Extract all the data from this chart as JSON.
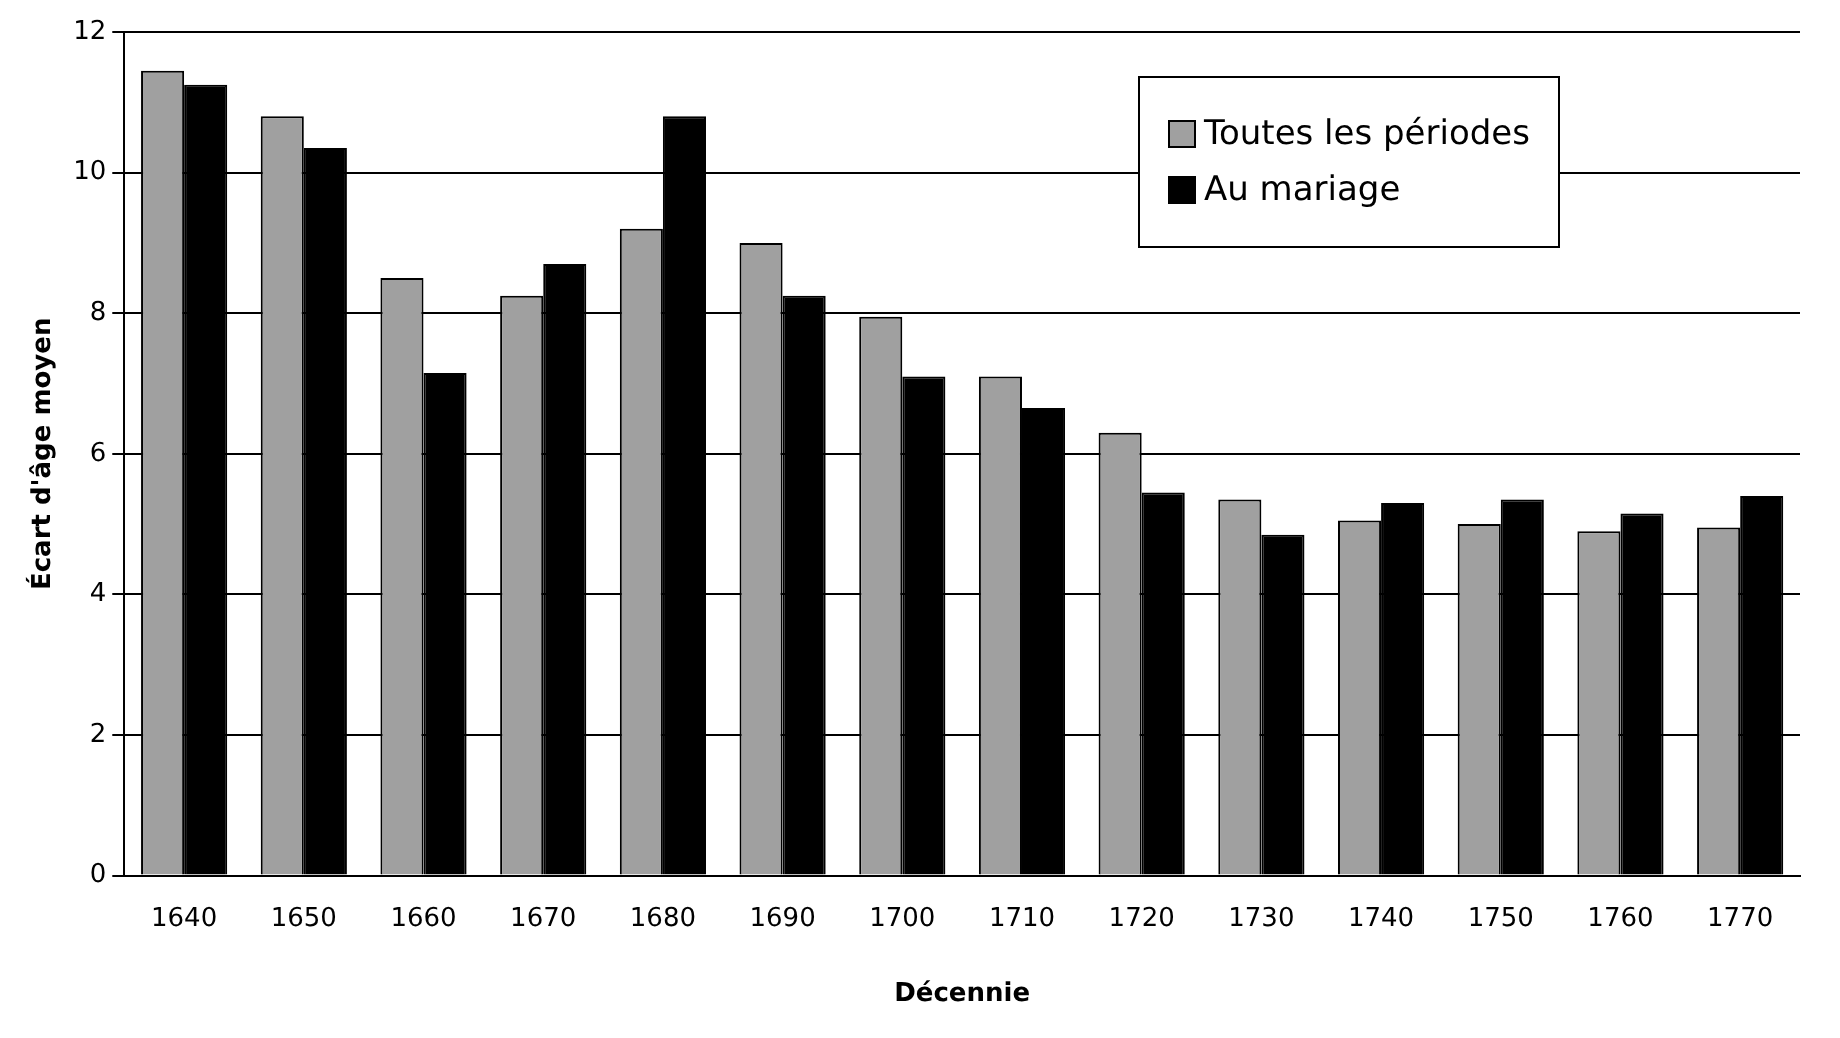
{
  "chart_data": {
    "type": "bar",
    "xlabel": "Décennie",
    "ylabel": "Écart d'âge moyen",
    "categories": [
      "1640",
      "1650",
      "1660",
      "1670",
      "1680",
      "1690",
      "1700",
      "1710",
      "1720",
      "1730",
      "1740",
      "1750",
      "1760",
      "1770"
    ],
    "series": [
      {
        "name": "Toutes les périodes",
        "color": "#a0a0a0",
        "values": [
          11.45,
          10.8,
          8.5,
          8.25,
          9.2,
          9.0,
          7.95,
          7.1,
          6.3,
          5.35,
          5.05,
          5.0,
          4.9,
          4.95
        ]
      },
      {
        "name": "Au mariage",
        "color": "#000000",
        "values": [
          11.25,
          10.35,
          7.15,
          8.7,
          10.8,
          8.25,
          7.1,
          6.65,
          5.45,
          4.85,
          5.3,
          5.35,
          5.15,
          5.4
        ]
      }
    ],
    "ylim": [
      0,
      12
    ],
    "yticks": [
      0,
      2,
      4,
      6,
      8,
      10,
      12
    ],
    "grid": "y",
    "legend": "top right"
  }
}
